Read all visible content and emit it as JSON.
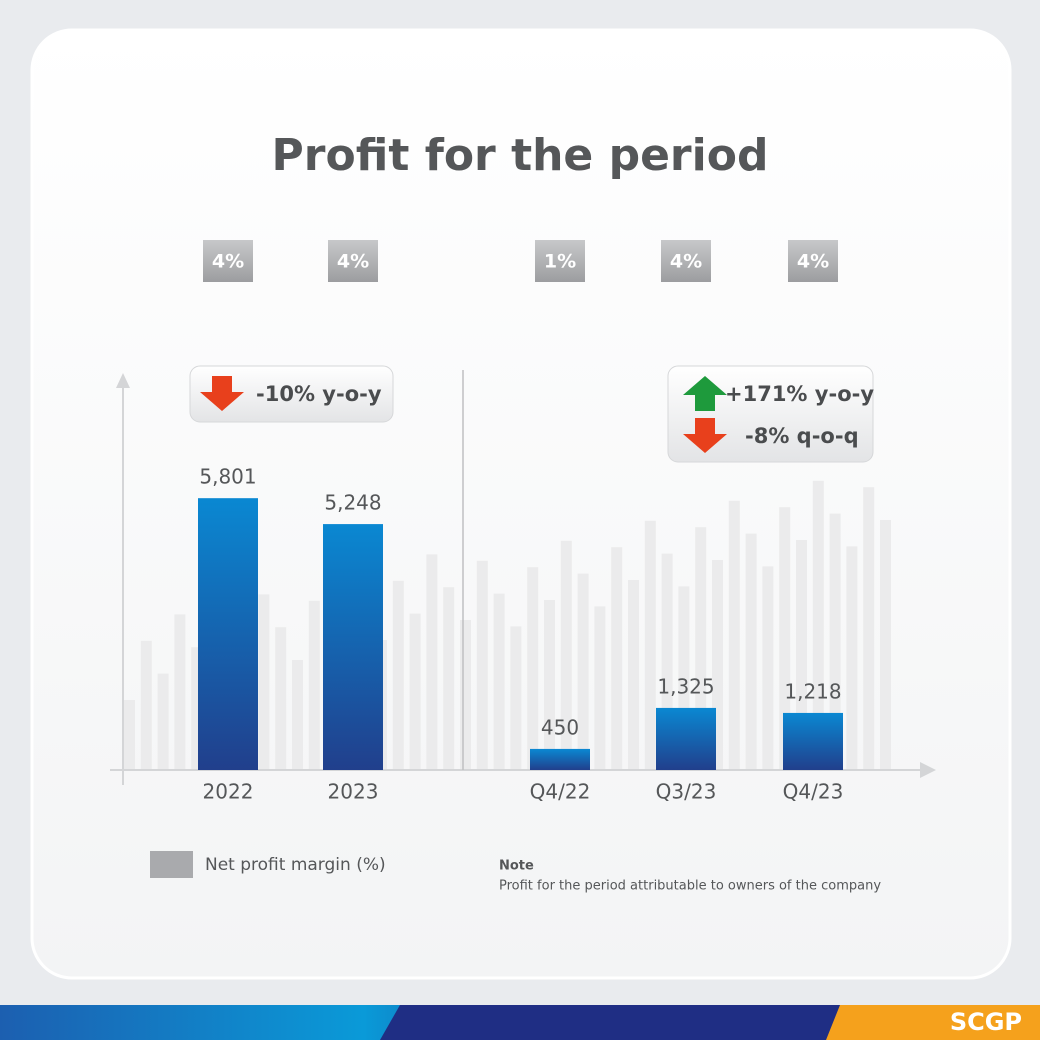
{
  "chart_data": {
    "type": "bar",
    "title": "Profit for the period",
    "categories": [
      "2022",
      "2023",
      "Q4/22",
      "Q3/23",
      "Q4/23"
    ],
    "values": [
      5801,
      5248,
      450,
      1325,
      1218
    ],
    "value_labels": [
      "5,801",
      "5,248",
      "450",
      "1,325",
      "1,218"
    ],
    "color": "#0a88d2",
    "ylim": [
      0,
      7000
    ],
    "margin": {
      "name": "Net profit margin (%)",
      "color": "#a9aaad",
      "values": [
        4,
        4,
        1,
        4,
        4
      ],
      "value_labels": [
        "4%",
        "4%",
        "1%",
        "4%",
        "4%"
      ]
    },
    "annotations": [
      "-10% y-o-y",
      "+171% y-o-y",
      "-8% q-o-q"
    ],
    "note": {
      "title": "Note",
      "text": "Profit for the period attributable to owners of the company"
    },
    "brand": "SCGP"
  }
}
